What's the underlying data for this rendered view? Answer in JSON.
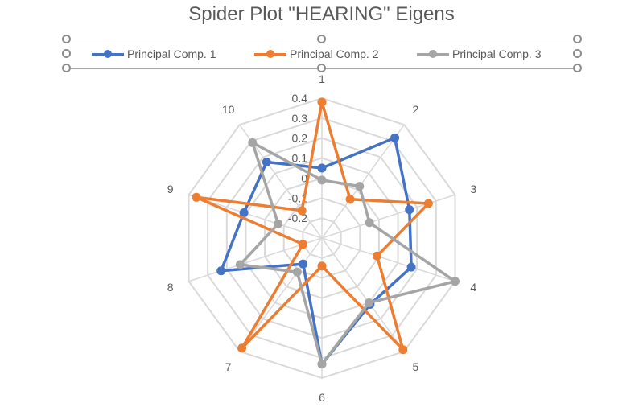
{
  "chart_data": {
    "type": "radar",
    "title": "Spider Plot \"HEARING\" Eigens",
    "categories": [
      "1",
      "2",
      "3",
      "4",
      "5",
      "6",
      "7",
      "8",
      "9",
      "10"
    ],
    "radial_ticks": [
      "-0.2",
      "-0.1",
      "0",
      "0.1",
      "0.2",
      "0.3",
      "0.4"
    ],
    "rlim": [
      -0.3,
      0.4
    ],
    "grid": true,
    "legend": "top",
    "series": [
      {
        "name": "Principal Comp. 1",
        "color": "#4472C4",
        "values": [
          0.05,
          0.32,
          0.16,
          0.17,
          0.11,
          0.33,
          -0.14,
          0.23,
          0.11,
          0.17
        ]
      },
      {
        "name": "Principal Comp. 2",
        "color": "#ED7D31",
        "values": [
          0.38,
          -0.06,
          0.26,
          -0.01,
          0.39,
          -0.16,
          0.38,
          -0.2,
          0.36,
          -0.13
        ]
      },
      {
        "name": "Principal Comp. 3",
        "color": "#A5A5A5",
        "values": [
          -0.01,
          0.02,
          -0.05,
          0.4,
          0.1,
          0.33,
          -0.09,
          0.13,
          -0.07,
          0.29
        ]
      }
    ]
  }
}
